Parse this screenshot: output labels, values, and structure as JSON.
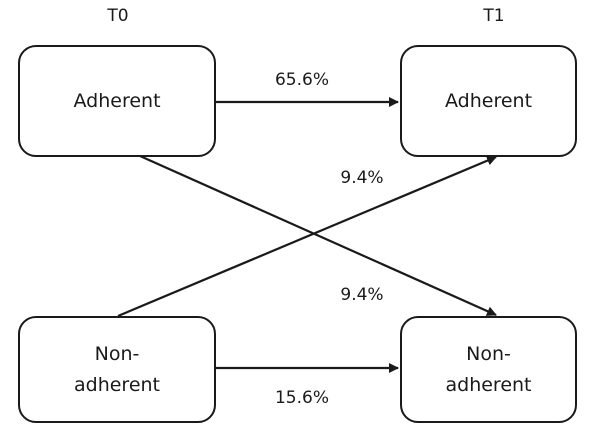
{
  "columns": {
    "t0": "T0",
    "t1": "T1"
  },
  "nodes": {
    "t0_adherent": "Adherent",
    "t0_nonadherent": "Non-\nadherent",
    "t1_adherent": "Adherent",
    "t1_nonadherent": "Non-\nadherent"
  },
  "transitions": {
    "adherent_to_adherent": "65.6%",
    "nonadherent_to_adherent": "9.4%",
    "adherent_to_nonadherent": "9.4%",
    "nonadherent_to_nonadherent": "15.6%"
  },
  "colors": {
    "stroke": "#1a1a1a",
    "background": "#ffffff"
  }
}
